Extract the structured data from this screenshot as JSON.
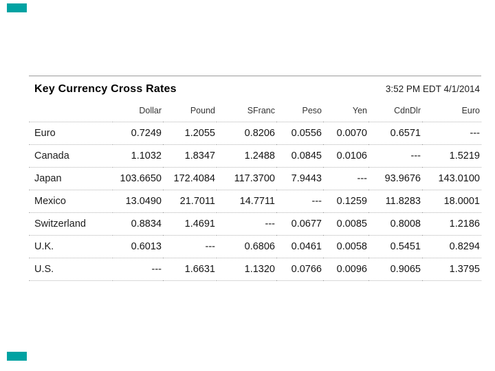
{
  "page": {
    "background": "#ffffff",
    "corner_mark_color": "#00a2a2"
  },
  "table": {
    "title": "Key Currency Cross Rates",
    "timestamp": "3:52 PM EDT 4/1/2014",
    "columns": [
      "Dollar",
      "Pound",
      "SFranc",
      "Peso",
      "Yen",
      "CdnDlr",
      "Euro"
    ],
    "rows": [
      {
        "label": "Euro",
        "values": [
          "0.7249",
          "1.2055",
          "0.8206",
          "0.0556",
          "0.0070",
          "0.6571",
          "---"
        ]
      },
      {
        "label": "Canada",
        "values": [
          "1.1032",
          "1.8347",
          "1.2488",
          "0.0845",
          "0.0106",
          "---",
          "1.5219"
        ]
      },
      {
        "label": "Japan",
        "values": [
          "103.6650",
          "172.4084",
          "117.3700",
          "7.9443",
          "---",
          "93.9676",
          "143.0100"
        ]
      },
      {
        "label": "Mexico",
        "values": [
          "13.0490",
          "21.7011",
          "14.7711",
          "---",
          "0.1259",
          "11.8283",
          "18.0001"
        ]
      },
      {
        "label": "Switzerland",
        "values": [
          "0.8834",
          "1.4691",
          "---",
          "0.0677",
          "0.0085",
          "0.8008",
          "1.2186"
        ]
      },
      {
        "label": "U.K.",
        "values": [
          "0.6013",
          "---",
          "0.6806",
          "0.0461",
          "0.0058",
          "0.5451",
          "0.8294"
        ]
      },
      {
        "label": "U.S.",
        "values": [
          "---",
          "1.6631",
          "1.1320",
          "0.0766",
          "0.0096",
          "0.9065",
          "1.3795"
        ]
      }
    ]
  },
  "chart_data": {
    "type": "table",
    "title": "Key Currency Cross Rates",
    "timestamp": "3:52 PM EDT 4/1/2014",
    "columns": [
      "Dollar",
      "Pound",
      "SFranc",
      "Peso",
      "Yen",
      "CdnDlr",
      "Euro"
    ],
    "row_labels": [
      "Euro",
      "Canada",
      "Japan",
      "Mexico",
      "Switzerland",
      "U.K.",
      "U.S."
    ],
    "values": [
      [
        0.7249,
        1.2055,
        0.8206,
        0.0556,
        0.007,
        0.6571,
        null
      ],
      [
        1.1032,
        1.8347,
        1.2488,
        0.0845,
        0.0106,
        null,
        1.5219
      ],
      [
        103.665,
        172.4084,
        117.37,
        7.9443,
        null,
        93.9676,
        143.01
      ],
      [
        13.049,
        21.7011,
        14.7711,
        null,
        0.1259,
        11.8283,
        18.0001
      ],
      [
        0.8834,
        1.4691,
        null,
        0.0677,
        0.0085,
        0.8008,
        1.2186
      ],
      [
        0.6013,
        null,
        0.6806,
        0.0461,
        0.0058,
        0.5451,
        0.8294
      ],
      [
        null,
        1.6631,
        1.132,
        0.0766,
        0.0096,
        0.9065,
        1.3795
      ]
    ],
    "null_display": "---",
    "layout": {
      "title_position": "top-left",
      "timestamp_position": "top-right",
      "separators": "dotted"
    }
  }
}
